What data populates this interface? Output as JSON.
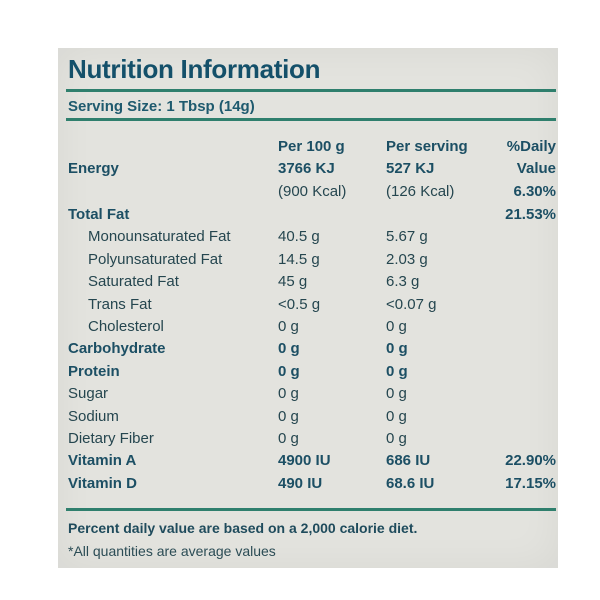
{
  "title": "Nutrition Information",
  "serving_size": "Serving Size: 1 Tbsp (14g)",
  "headers": {
    "per100": "Per 100 g",
    "perServing": "Per serving",
    "daily1": "%Daily",
    "daily2": "Value"
  },
  "energy": {
    "label": "Energy",
    "per100_kj": "3766 KJ",
    "per100_kcal": "(900 Kcal)",
    "serving_kj": "527 KJ",
    "serving_kcal": "(126 Kcal)",
    "daily": "6.30%"
  },
  "rows": [
    {
      "label": "Total Fat",
      "per100": "",
      "serving": "",
      "daily": "21.53%"
    },
    {
      "label": "Monounsaturated Fat",
      "per100": "40.5 g",
      "serving": "5.67 g",
      "daily": ""
    },
    {
      "label": "Polyunsaturated Fat",
      "per100": "14.5 g",
      "serving": "2.03 g",
      "daily": ""
    },
    {
      "label": "Saturated Fat",
      "per100": "45 g",
      "serving": "6.3 g",
      "daily": ""
    },
    {
      "label": "Trans Fat",
      "per100": "<0.5 g",
      "serving": "<0.07 g",
      "daily": ""
    },
    {
      "label": "Cholesterol",
      "per100": "0 g",
      "serving": "0 g",
      "daily": ""
    },
    {
      "label": "Carbohydrate",
      "per100": "0 g",
      "serving": "0 g",
      "daily": ""
    },
    {
      "label": "Protein",
      "per100": "0 g",
      "serving": "0 g",
      "daily": ""
    },
    {
      "label": "Sugar",
      "per100": "0 g",
      "serving": "0 g",
      "daily": ""
    },
    {
      "label": "Sodium",
      "per100": "0 g",
      "serving": "0 g",
      "daily": ""
    },
    {
      "label": "Dietary Fiber",
      "per100": "0 g",
      "serving": "0 g",
      "daily": ""
    },
    {
      "label": "Vitamin A",
      "per100": "4900 IU",
      "serving": "686 IU",
      "daily": "22.90%"
    },
    {
      "label": "Vitamin D",
      "per100": "490 IU",
      "serving": "68.6 IU",
      "daily": "17.15%"
    }
  ],
  "footnote_1": "Percent daily value are based on a 2,000 calorie diet.",
  "footnote_2": "*All quantities are average values"
}
